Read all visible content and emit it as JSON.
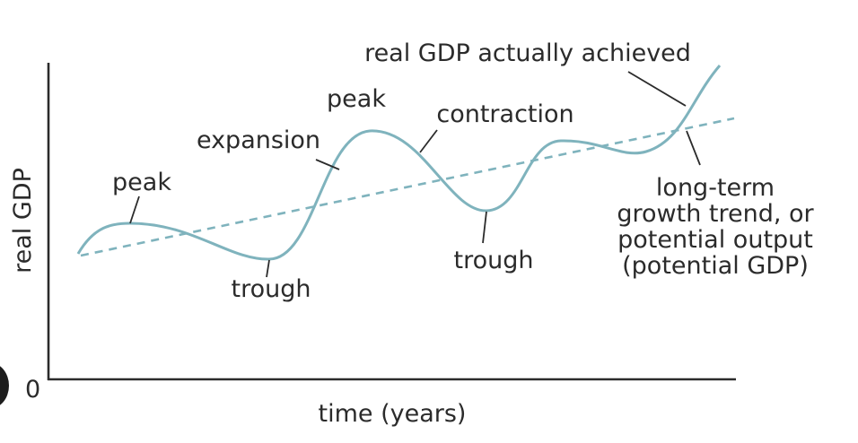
{
  "diagram": {
    "y_axis_label": "real GDP",
    "x_axis_label": "time (years)",
    "origin_label": "0",
    "annotations": {
      "peak_1": "peak",
      "expansion": "expansion",
      "peak_2": "peak",
      "contraction": "contraction",
      "trough_1": "trough",
      "trough_2": "trough",
      "real_gdp": "real GDP actually achieved",
      "trend_line1": "long-term",
      "trend_line2": "growth trend, or",
      "trend_line3": "potential output",
      "trend_line4": "(potential GDP)"
    }
  },
  "colors": {
    "curve": "#7fb3bd",
    "text": "#2b2b2b",
    "background": "#ffffff"
  }
}
